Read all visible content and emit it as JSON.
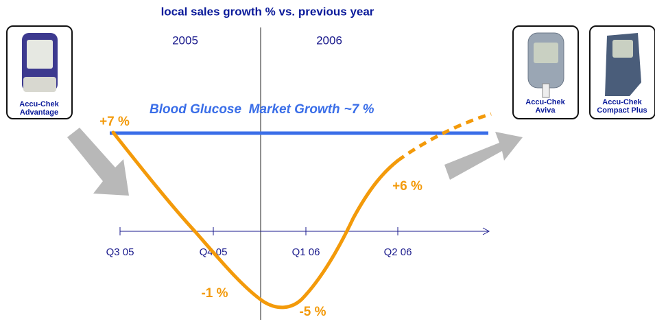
{
  "title": "local sales growth % vs. previous year",
  "years": [
    "2005",
    "2006"
  ],
  "market_growth": {
    "label": "Blood Glucose  Market Growth",
    "value": "~7 %"
  },
  "quarters": [
    "Q3 05",
    "Q4 05",
    "Q1 06",
    "Q2 06"
  ],
  "growth_labels": [
    "+7 %",
    "-1 %",
    "-5 %",
    "+6 %"
  ],
  "products": [
    {
      "name": [
        "Accu-Chek",
        "Advantage"
      ]
    },
    {
      "name": [
        "Accu-Chek",
        "Aviva"
      ]
    },
    {
      "name": [
        "Accu-Chek",
        "Compact Plus"
      ]
    }
  ]
}
